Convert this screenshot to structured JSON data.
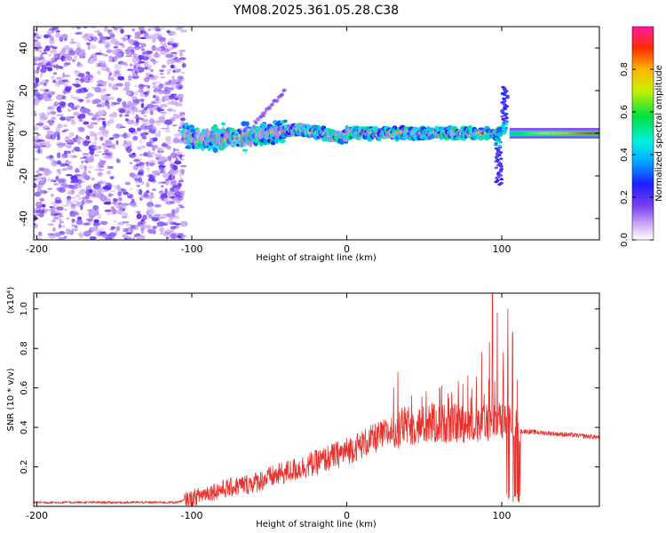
{
  "title": "YM08.2025.361.05.28.C38",
  "chart_data": [
    {
      "id": "spectrogram",
      "type": "heatmap",
      "title": "YM08.2025.361.05.28.C38",
      "xlabel": "Height of straight line (km)",
      "ylabel": "Frequency (Hz)",
      "xlim": [
        -202,
        163
      ],
      "ylim": [
        -50,
        50
      ],
      "xticks": [
        -200,
        -100,
        0,
        100
      ],
      "yticks": [
        -40,
        -20,
        0,
        20,
        40
      ],
      "colorbar": {
        "label": "Normalized spectral amplitude",
        "range": [
          0,
          1
        ],
        "ticks": [
          "0.0",
          "0.2",
          "0.4",
          "0.6",
          "0.8"
        ],
        "tick_values": [
          0.0,
          0.2,
          0.4,
          0.6,
          0.8
        ]
      },
      "regions": [
        {
          "name": "noise",
          "x": [
            -202,
            -105
          ],
          "f": [
            -50,
            50
          ],
          "amplitude": 0.15
        },
        {
          "name": "echo-band",
          "x": [
            -105,
            100
          ],
          "f_center": 0,
          "f_width": 4,
          "amplitude": [
            0.3,
            0.8
          ]
        },
        {
          "name": "spike",
          "x": 102,
          "f": [
            -24,
            22
          ],
          "amplitude": 0.4
        },
        {
          "name": "tail",
          "x": [
            105,
            163
          ],
          "f_center": 0,
          "f_width": 2,
          "amplitude": [
            0.4,
            1.0
          ]
        }
      ]
    },
    {
      "id": "snr",
      "type": "line",
      "xlabel": "Height of straight line (km)",
      "ylabel": "SNR (10 * v/v)",
      "yscale_label": "(x10⁴)",
      "xlim": [
        -202,
        163
      ],
      "ylim": [
        0,
        1.08
      ],
      "xticks": [
        -200,
        -100,
        0,
        100
      ],
      "yticks": [
        "0.2",
        "0.4",
        "0.6",
        "0.8",
        "1.0"
      ],
      "ytick_values": [
        0.2,
        0.4,
        0.6,
        0.8,
        1.0
      ],
      "color": "#e8322e",
      "series": [
        {
          "name": "SNR",
          "envelope_x": [
            -202,
            -110,
            -100,
            -90,
            -60,
            -40,
            -20,
            0,
            20,
            35,
            60,
            80,
            95,
            105,
            110,
            112,
            115,
            163
          ],
          "envelope_y": [
            0.02,
            0.02,
            0.04,
            0.07,
            0.12,
            0.17,
            0.22,
            0.28,
            0.35,
            0.4,
            0.42,
            0.42,
            0.43,
            0.42,
            0.41,
            0.38,
            0.38,
            0.35
          ],
          "peaks": [
            {
              "x": 33,
              "y": 0.68
            },
            {
              "x": 38,
              "y": 0.47
            },
            {
              "x": 55,
              "y": 0.52
            },
            {
              "x": 60,
              "y": 0.6
            },
            {
              "x": 65,
              "y": 0.45
            },
            {
              "x": 75,
              "y": 0.62
            },
            {
              "x": 80,
              "y": 0.55
            },
            {
              "x": 87,
              "y": 0.78
            },
            {
              "x": 92,
              "y": 0.83
            },
            {
              "x": 94,
              "y": 1.08
            },
            {
              "x": 97,
              "y": 0.98
            },
            {
              "x": 101,
              "y": 0.78
            },
            {
              "x": 104,
              "y": 1.0
            },
            {
              "x": 107,
              "y": 0.88
            },
            {
              "x": 110,
              "y": 0.64
            }
          ]
        }
      ]
    }
  ]
}
